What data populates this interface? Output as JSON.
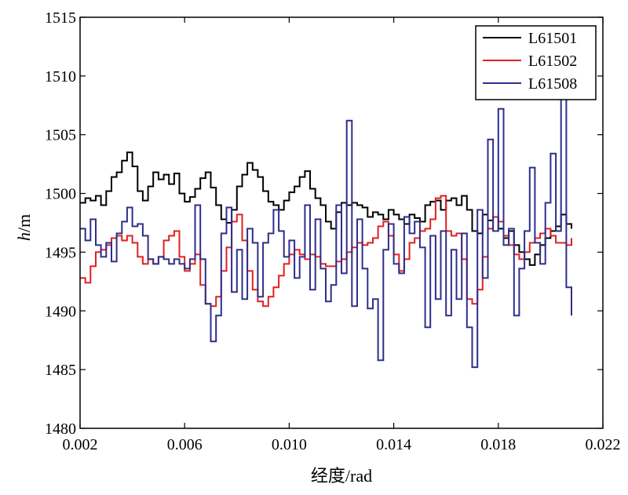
{
  "chart_data": {
    "type": "line",
    "xlabel": "经度/rad",
    "ylabel_italic": "h",
    "ylabel_unit": "/m",
    "xlim": [
      0.002,
      0.022
    ],
    "ylim": [
      1480,
      1515
    ],
    "xticks": [
      0.002,
      0.006,
      0.01,
      0.014,
      0.018,
      0.022
    ],
    "xtick_labels": [
      "0.002",
      "0.006",
      "0.010",
      "0.014",
      "0.018",
      "0.022"
    ],
    "yticks": [
      1480,
      1485,
      1490,
      1495,
      1500,
      1505,
      1510,
      1515
    ],
    "ytick_labels": [
      "1480",
      "1485",
      "1490",
      "1495",
      "1500",
      "1505",
      "1510",
      "1515"
    ],
    "grid": false,
    "legend_position": "top-right",
    "series": [
      {
        "name": "L61501",
        "color": "#000000",
        "points": [
          [
            0.002,
            1499.2
          ],
          [
            0.0022,
            1499.6
          ],
          [
            0.0024,
            1499.4
          ],
          [
            0.0026,
            1499.8
          ],
          [
            0.0028,
            1499.0
          ],
          [
            0.003,
            1500.2
          ],
          [
            0.0032,
            1501.4
          ],
          [
            0.0034,
            1501.8
          ],
          [
            0.0036,
            1502.8
          ],
          [
            0.0038,
            1503.5
          ],
          [
            0.004,
            1502.3
          ],
          [
            0.0042,
            1500.2
          ],
          [
            0.0044,
            1499.4
          ],
          [
            0.0046,
            1500.6
          ],
          [
            0.0048,
            1501.8
          ],
          [
            0.005,
            1501.2
          ],
          [
            0.0052,
            1501.6
          ],
          [
            0.0054,
            1500.8
          ],
          [
            0.0056,
            1501.7
          ],
          [
            0.0058,
            1500.0
          ],
          [
            0.006,
            1499.3
          ],
          [
            0.0062,
            1499.7
          ],
          [
            0.0064,
            1500.4
          ],
          [
            0.0066,
            1501.3
          ],
          [
            0.0068,
            1501.8
          ],
          [
            0.007,
            1500.5
          ],
          [
            0.0072,
            1499.0
          ],
          [
            0.0074,
            1497.8
          ],
          [
            0.0076,
            1497.5
          ],
          [
            0.0078,
            1498.6
          ],
          [
            0.008,
            1500.6
          ],
          [
            0.0082,
            1501.6
          ],
          [
            0.0084,
            1502.6
          ],
          [
            0.0086,
            1502.0
          ],
          [
            0.0088,
            1501.4
          ],
          [
            0.009,
            1500.2
          ],
          [
            0.0092,
            1499.3
          ],
          [
            0.0094,
            1499.0
          ],
          [
            0.0096,
            1498.6
          ],
          [
            0.0098,
            1499.4
          ],
          [
            0.01,
            1500.1
          ],
          [
            0.0102,
            1500.6
          ],
          [
            0.0104,
            1501.4
          ],
          [
            0.0106,
            1501.9
          ],
          [
            0.0108,
            1500.4
          ],
          [
            0.011,
            1499.6
          ],
          [
            0.0112,
            1499.0
          ],
          [
            0.0114,
            1497.6
          ],
          [
            0.0116,
            1497.0
          ],
          [
            0.0118,
            1498.4
          ],
          [
            0.012,
            1499.2
          ],
          [
            0.0122,
            1499.0
          ],
          [
            0.0124,
            1499.2
          ],
          [
            0.0126,
            1499.0
          ],
          [
            0.0128,
            1498.8
          ],
          [
            0.013,
            1498.0
          ],
          [
            0.0132,
            1498.4
          ],
          [
            0.0134,
            1498.2
          ],
          [
            0.0136,
            1497.8
          ],
          [
            0.0138,
            1498.6
          ],
          [
            0.014,
            1498.2
          ],
          [
            0.0142,
            1497.8
          ],
          [
            0.0144,
            1497.4
          ],
          [
            0.0146,
            1498.2
          ],
          [
            0.0148,
            1497.9
          ],
          [
            0.015,
            1497.6
          ],
          [
            0.0152,
            1499.0
          ],
          [
            0.0154,
            1499.3
          ],
          [
            0.0156,
            1499.4
          ],
          [
            0.0158,
            1498.6
          ],
          [
            0.016,
            1499.4
          ],
          [
            0.0162,
            1499.6
          ],
          [
            0.0164,
            1499.0
          ],
          [
            0.0166,
            1499.8
          ],
          [
            0.0168,
            1498.6
          ],
          [
            0.017,
            1496.8
          ],
          [
            0.0172,
            1496.6
          ],
          [
            0.0174,
            1498.2
          ],
          [
            0.0176,
            1497.7
          ],
          [
            0.0178,
            1498.0
          ],
          [
            0.018,
            1497.0
          ],
          [
            0.0182,
            1496.2
          ],
          [
            0.0184,
            1496.8
          ],
          [
            0.0186,
            1495.6
          ],
          [
            0.0188,
            1495.0
          ],
          [
            0.019,
            1494.4
          ],
          [
            0.0192,
            1493.9
          ],
          [
            0.0194,
            1494.8
          ],
          [
            0.0196,
            1495.6
          ],
          [
            0.0198,
            1496.2
          ],
          [
            0.02,
            1496.8
          ],
          [
            0.0202,
            1497.2
          ],
          [
            0.0204,
            1498.2
          ],
          [
            0.0206,
            1497.4
          ],
          [
            0.0208,
            1497.0
          ]
        ]
      },
      {
        "name": "L61502",
        "color": "#e02020",
        "points": [
          [
            0.002,
            1492.8
          ],
          [
            0.0022,
            1492.4
          ],
          [
            0.0024,
            1493.8
          ],
          [
            0.0026,
            1495.0
          ],
          [
            0.0028,
            1495.2
          ],
          [
            0.003,
            1495.6
          ],
          [
            0.0032,
            1496.2
          ],
          [
            0.0034,
            1496.4
          ],
          [
            0.0036,
            1496.0
          ],
          [
            0.0038,
            1496.4
          ],
          [
            0.004,
            1495.8
          ],
          [
            0.0042,
            1494.6
          ],
          [
            0.0044,
            1494.0
          ],
          [
            0.0046,
            1494.4
          ],
          [
            0.0048,
            1494.0
          ],
          [
            0.005,
            1494.6
          ],
          [
            0.0052,
            1496.0
          ],
          [
            0.0054,
            1496.4
          ],
          [
            0.0056,
            1496.8
          ],
          [
            0.0058,
            1494.6
          ],
          [
            0.006,
            1493.4
          ],
          [
            0.0062,
            1494.0
          ],
          [
            0.0064,
            1494.8
          ],
          [
            0.0066,
            1492.2
          ],
          [
            0.0068,
            1490.6
          ],
          [
            0.007,
            1490.4
          ],
          [
            0.0072,
            1491.2
          ],
          [
            0.0074,
            1493.4
          ],
          [
            0.0076,
            1495.4
          ],
          [
            0.0078,
            1497.6
          ],
          [
            0.008,
            1498.2
          ],
          [
            0.0082,
            1496.0
          ],
          [
            0.0084,
            1493.4
          ],
          [
            0.0086,
            1491.8
          ],
          [
            0.0088,
            1490.8
          ],
          [
            0.009,
            1490.4
          ],
          [
            0.0092,
            1491.2
          ],
          [
            0.0094,
            1492.0
          ],
          [
            0.0096,
            1493.0
          ],
          [
            0.0098,
            1494.0
          ],
          [
            0.01,
            1494.8
          ],
          [
            0.0102,
            1495.2
          ],
          [
            0.0104,
            1494.8
          ],
          [
            0.0106,
            1494.4
          ],
          [
            0.0108,
            1494.8
          ],
          [
            0.011,
            1494.6
          ],
          [
            0.0112,
            1494.0
          ],
          [
            0.0114,
            1493.8
          ],
          [
            0.0116,
            1493.8
          ],
          [
            0.0118,
            1494.2
          ],
          [
            0.012,
            1494.4
          ],
          [
            0.0122,
            1495.0
          ],
          [
            0.0124,
            1495.4
          ],
          [
            0.0126,
            1495.8
          ],
          [
            0.0128,
            1495.6
          ],
          [
            0.013,
            1495.8
          ],
          [
            0.0132,
            1496.2
          ],
          [
            0.0134,
            1497.2
          ],
          [
            0.0136,
            1497.6
          ],
          [
            0.0138,
            1496.4
          ],
          [
            0.014,
            1494.8
          ],
          [
            0.0142,
            1493.4
          ],
          [
            0.0144,
            1494.4
          ],
          [
            0.0146,
            1495.8
          ],
          [
            0.0148,
            1496.2
          ],
          [
            0.015,
            1496.8
          ],
          [
            0.0152,
            1497.0
          ],
          [
            0.0154,
            1497.8
          ],
          [
            0.0156,
            1499.6
          ],
          [
            0.0158,
            1499.8
          ],
          [
            0.016,
            1496.8
          ],
          [
            0.0162,
            1496.4
          ],
          [
            0.0164,
            1496.6
          ],
          [
            0.0166,
            1494.4
          ],
          [
            0.0168,
            1491.0
          ],
          [
            0.017,
            1490.6
          ],
          [
            0.0172,
            1491.8
          ],
          [
            0.0174,
            1494.6
          ],
          [
            0.0176,
            1497.0
          ],
          [
            0.0178,
            1498.0
          ],
          [
            0.018,
            1497.6
          ],
          [
            0.0182,
            1496.4
          ],
          [
            0.0184,
            1495.6
          ],
          [
            0.0186,
            1494.8
          ],
          [
            0.0188,
            1494.4
          ],
          [
            0.019,
            1495.0
          ],
          [
            0.0192,
            1495.8
          ],
          [
            0.0194,
            1496.2
          ],
          [
            0.0196,
            1496.6
          ],
          [
            0.0198,
            1497.0
          ],
          [
            0.02,
            1496.4
          ],
          [
            0.0202,
            1495.8
          ],
          [
            0.0204,
            1495.8
          ],
          [
            0.0206,
            1495.6
          ],
          [
            0.0208,
            1496.2
          ]
        ]
      },
      {
        "name": "L61508",
        "color": "#2e2e8a",
        "points": [
          [
            0.002,
            1497.0
          ],
          [
            0.0022,
            1496.0
          ],
          [
            0.0024,
            1497.8
          ],
          [
            0.0026,
            1495.6
          ],
          [
            0.0028,
            1494.6
          ],
          [
            0.003,
            1495.8
          ],
          [
            0.0032,
            1494.2
          ],
          [
            0.0034,
            1496.6
          ],
          [
            0.0036,
            1497.6
          ],
          [
            0.0038,
            1498.8
          ],
          [
            0.004,
            1497.2
          ],
          [
            0.0042,
            1497.4
          ],
          [
            0.0044,
            1496.4
          ],
          [
            0.0046,
            1494.4
          ],
          [
            0.0048,
            1494.0
          ],
          [
            0.005,
            1494.6
          ],
          [
            0.0052,
            1494.4
          ],
          [
            0.0054,
            1494.0
          ],
          [
            0.0056,
            1494.4
          ],
          [
            0.0058,
            1494.0
          ],
          [
            0.006,
            1493.6
          ],
          [
            0.0062,
            1494.4
          ],
          [
            0.0064,
            1499.0
          ],
          [
            0.0066,
            1494.4
          ],
          [
            0.0068,
            1490.6
          ],
          [
            0.007,
            1487.4
          ],
          [
            0.0072,
            1489.6
          ],
          [
            0.0074,
            1496.6
          ],
          [
            0.0076,
            1498.8
          ],
          [
            0.0078,
            1491.6
          ],
          [
            0.008,
            1495.2
          ],
          [
            0.0082,
            1491.0
          ],
          [
            0.0084,
            1497.0
          ],
          [
            0.0086,
            1495.8
          ],
          [
            0.0088,
            1491.2
          ],
          [
            0.009,
            1495.8
          ],
          [
            0.0092,
            1496.6
          ],
          [
            0.0094,
            1498.6
          ],
          [
            0.0096,
            1496.8
          ],
          [
            0.0098,
            1494.6
          ],
          [
            0.01,
            1496.0
          ],
          [
            0.0102,
            1492.8
          ],
          [
            0.0104,
            1494.6
          ],
          [
            0.0106,
            1499.0
          ],
          [
            0.0108,
            1491.8
          ],
          [
            0.011,
            1497.8
          ],
          [
            0.0112,
            1493.6
          ],
          [
            0.0114,
            1490.8
          ],
          [
            0.0116,
            1492.2
          ],
          [
            0.0118,
            1499.0
          ],
          [
            0.012,
            1493.2
          ],
          [
            0.0122,
            1506.2
          ],
          [
            0.0124,
            1490.4
          ],
          [
            0.0126,
            1497.8
          ],
          [
            0.0128,
            1493.6
          ],
          [
            0.013,
            1490.2
          ],
          [
            0.0132,
            1491.0
          ],
          [
            0.0134,
            1485.8
          ],
          [
            0.0136,
            1495.2
          ],
          [
            0.0138,
            1497.4
          ],
          [
            0.014,
            1494.0
          ],
          [
            0.0142,
            1493.2
          ],
          [
            0.0144,
            1498.0
          ],
          [
            0.0146,
            1496.6
          ],
          [
            0.0148,
            1497.6
          ],
          [
            0.015,
            1495.4
          ],
          [
            0.0152,
            1488.6
          ],
          [
            0.0154,
            1496.4
          ],
          [
            0.0156,
            1491.0
          ],
          [
            0.0158,
            1496.8
          ],
          [
            0.016,
            1489.6
          ],
          [
            0.0162,
            1495.2
          ],
          [
            0.0164,
            1491.0
          ],
          [
            0.0166,
            1496.6
          ],
          [
            0.0168,
            1488.6
          ],
          [
            0.017,
            1485.2
          ],
          [
            0.0172,
            1498.6
          ],
          [
            0.0174,
            1492.8
          ],
          [
            0.0176,
            1504.6
          ],
          [
            0.0178,
            1496.8
          ],
          [
            0.018,
            1507.2
          ],
          [
            0.0182,
            1495.6
          ],
          [
            0.0184,
            1497.0
          ],
          [
            0.0186,
            1489.6
          ],
          [
            0.0188,
            1493.6
          ],
          [
            0.019,
            1496.8
          ],
          [
            0.0192,
            1502.2
          ],
          [
            0.0194,
            1495.8
          ],
          [
            0.0196,
            1494.0
          ],
          [
            0.0198,
            1499.2
          ],
          [
            0.02,
            1503.4
          ],
          [
            0.0202,
            1496.8
          ],
          [
            0.0204,
            1508.6
          ],
          [
            0.0206,
            1492.0
          ],
          [
            0.0208,
            1489.6
          ]
        ]
      }
    ]
  }
}
